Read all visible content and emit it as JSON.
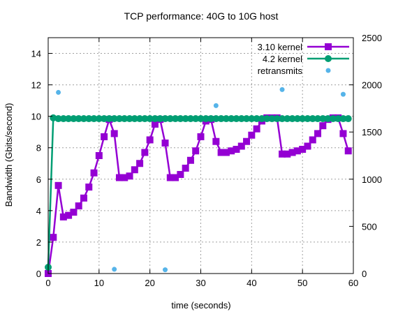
{
  "chart_data": {
    "type": "line",
    "title": "TCP performance: 40G to 10G host",
    "xlabel": "time (seconds)",
    "ylabel": "Bandwidth (Gbits/second)",
    "xlim": [
      0,
      60
    ],
    "ylim": [
      0,
      15
    ],
    "y2lim": [
      0,
      2500
    ],
    "xticks": [
      0,
      10,
      20,
      30,
      40,
      50,
      60
    ],
    "yticks": [
      0,
      2,
      4,
      6,
      8,
      10,
      12,
      14
    ],
    "y2ticks": [
      0,
      500,
      1000,
      1500,
      2000,
      2500
    ],
    "grid": true,
    "legend_position": "top-right",
    "series": [
      {
        "name": "3.10 kernel",
        "color": "#9400d3",
        "marker": "square",
        "axis": "y",
        "x": [
          0,
          1,
          2,
          3,
          4,
          5,
          6,
          7,
          8,
          9,
          10,
          11,
          12,
          13,
          14,
          15,
          16,
          17,
          18,
          19,
          20,
          21,
          22,
          23,
          24,
          25,
          26,
          27,
          28,
          29,
          30,
          31,
          32,
          33,
          34,
          35,
          36,
          37,
          38,
          39,
          40,
          41,
          42,
          43,
          44,
          45,
          46,
          47,
          48,
          49,
          50,
          51,
          52,
          53,
          54,
          55,
          56,
          57,
          58,
          59
        ],
        "y": [
          0.0,
          2.3,
          5.6,
          3.6,
          3.7,
          3.9,
          4.3,
          4.8,
          5.5,
          6.4,
          7.5,
          8.7,
          9.8,
          8.9,
          6.1,
          6.1,
          6.2,
          6.6,
          7.0,
          7.7,
          8.5,
          9.5,
          9.8,
          8.3,
          6.1,
          6.1,
          6.3,
          6.7,
          7.2,
          7.8,
          8.7,
          9.7,
          9.8,
          8.4,
          7.7,
          7.7,
          7.8,
          7.9,
          8.1,
          8.4,
          8.8,
          9.2,
          9.7,
          9.9,
          9.9,
          9.9,
          7.6,
          7.6,
          7.7,
          7.8,
          7.9,
          8.1,
          8.5,
          8.9,
          9.4,
          9.8,
          9.9,
          9.9,
          8.9,
          7.8
        ]
      },
      {
        "name": "4.2 kernel",
        "color": "#009e73",
        "marker": "circle",
        "axis": "y",
        "x": [
          0,
          1,
          2,
          3,
          4,
          5,
          6,
          7,
          8,
          9,
          10,
          11,
          12,
          13,
          14,
          15,
          16,
          17,
          18,
          19,
          20,
          21,
          22,
          23,
          24,
          25,
          26,
          27,
          28,
          29,
          30,
          31,
          32,
          33,
          34,
          35,
          36,
          37,
          38,
          39,
          40,
          41,
          42,
          43,
          44,
          45,
          46,
          47,
          48,
          49,
          50,
          51,
          52,
          53,
          54,
          55,
          56,
          57,
          58,
          59
        ],
        "y": [
          0.4,
          9.9,
          9.85,
          9.85,
          9.85,
          9.85,
          9.85,
          9.85,
          9.85,
          9.85,
          9.85,
          9.85,
          9.85,
          9.85,
          9.85,
          9.85,
          9.85,
          9.85,
          9.85,
          9.85,
          9.85,
          9.85,
          9.85,
          9.85,
          9.85,
          9.85,
          9.85,
          9.85,
          9.85,
          9.85,
          9.85,
          9.85,
          9.85,
          9.85,
          9.85,
          9.85,
          9.85,
          9.85,
          9.85,
          9.85,
          9.85,
          9.85,
          9.85,
          9.85,
          9.85,
          9.85,
          9.85,
          9.85,
          9.85,
          9.85,
          9.85,
          9.85,
          9.85,
          9.85,
          9.85,
          9.85,
          9.85,
          9.85,
          9.85,
          9.85
        ]
      },
      {
        "name": "retransmits",
        "color": "#56b4e9",
        "marker": "dot",
        "axis": "y2",
        "x": [
          2,
          13,
          23,
          33,
          46,
          58
        ],
        "y": [
          1920,
          45,
          40,
          1780,
          1950,
          1900
        ]
      }
    ]
  }
}
